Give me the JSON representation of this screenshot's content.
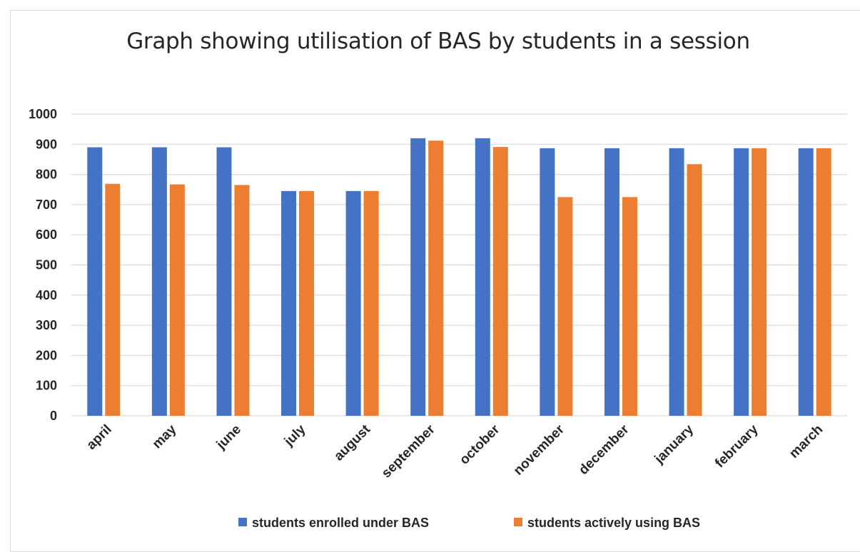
{
  "chart_data": {
    "type": "bar",
    "title": "Graph showing utilisation of BAS by students in a session",
    "xlabel": "",
    "ylabel": "",
    "categories": [
      "april",
      "may",
      "june",
      "july",
      "august",
      "september",
      "october",
      "november",
      "december",
      "january",
      "february",
      "march"
    ],
    "series": [
      {
        "name": "students enrolled under BAS",
        "color": "#4472c4",
        "values": [
          890,
          890,
          890,
          745,
          745,
          920,
          920,
          887,
          887,
          887,
          887,
          887
        ]
      },
      {
        "name": "students actively using BAS",
        "color": "#ed7d31",
        "values": [
          769,
          767,
          765,
          745,
          745,
          912,
          891,
          725,
          725,
          834,
          887,
          887
        ]
      }
    ],
    "ylim": [
      0,
      1000
    ],
    "yticks": [
      0,
      100,
      200,
      300,
      400,
      500,
      600,
      700,
      800,
      900,
      1000
    ],
    "grid": true,
    "legend_position": "bottom"
  }
}
